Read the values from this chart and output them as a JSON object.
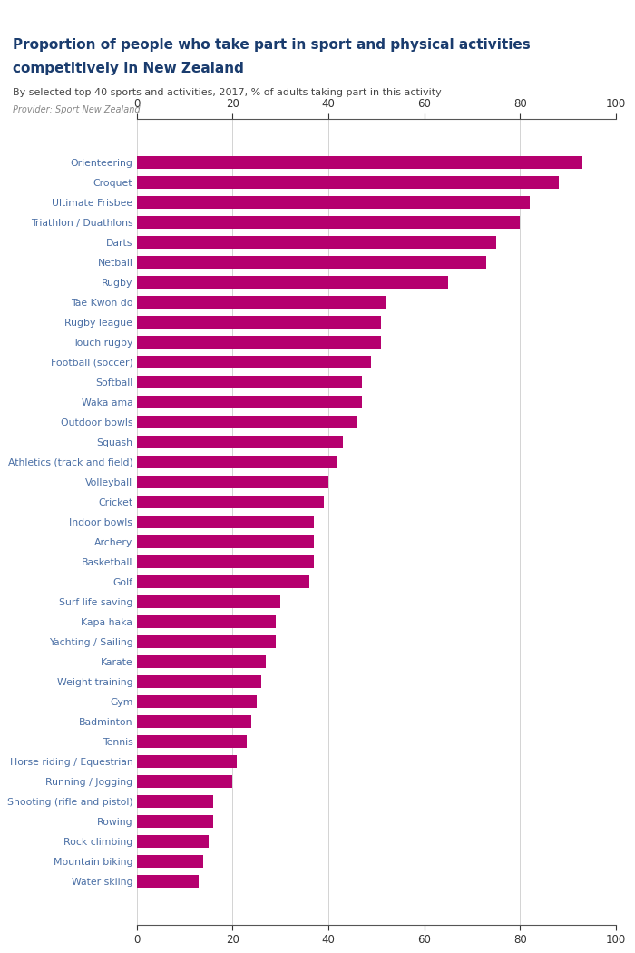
{
  "title_line1": "Proportion of people who take part in sport and physical activities",
  "title_line2": "competitively in New Zealand",
  "subtitle": "By selected top 40 sports and activities, 2017, % of adults taking part in this activity",
  "provider": "Provider: Sport New Zealand",
  "bar_color": "#b5006e",
  "label_color": "#4a6fa5",
  "title_color": "#1a3c6e",
  "provider_color": "#888888",
  "background_color": "#ffffff",
  "logo_bg": "#4a6fa5",
  "xlim": [
    0,
    100
  ],
  "xticks": [
    0,
    20,
    40,
    60,
    80,
    100
  ],
  "categories": [
    "Orienteering",
    "Croquet",
    "Ultimate Frisbee",
    "Triathlon / Duathlons",
    "Darts",
    "Netball",
    "Rugby",
    "Tae Kwon do",
    "Rugby league",
    "Touch rugby",
    "Football (soccer)",
    "Softball",
    "Waka ama",
    "Outdoor bowls",
    "Squash",
    "Athletics (track and field)",
    "Volleyball",
    "Cricket",
    "Indoor bowls",
    "Archery",
    "Basketball",
    "Golf",
    "Surf life saving",
    "Kapa haka",
    "Yachting / Sailing",
    "Karate",
    "Weight training",
    "Gym",
    "Badminton",
    "Tennis",
    "Horse riding / Equestrian",
    "Running / Jogging",
    "Shooting (rifle and pistol)",
    "Rowing",
    "Rock climbing",
    "Mountain biking",
    "Water skiing"
  ],
  "values": [
    93,
    88,
    82,
    80,
    75,
    73,
    65,
    52,
    51,
    51,
    49,
    47,
    47,
    46,
    43,
    42,
    40,
    39,
    37,
    37,
    37,
    36,
    30,
    29,
    29,
    27,
    26,
    25,
    24,
    23,
    21,
    20,
    16,
    16,
    15,
    14,
    13
  ],
  "figsize": [
    7.0,
    10.5
  ],
  "dpi": 100
}
